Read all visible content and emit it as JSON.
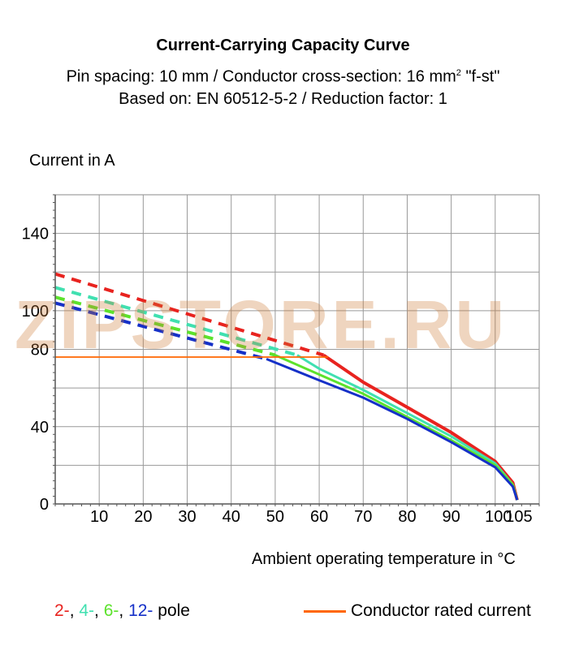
{
  "header": {
    "title": "Current-Carrying Capacity Curve",
    "subtitle_1_pre": "Pin spacing: 10 mm / Conductor cross-section: 16 mm",
    "subtitle_1_sup": "2",
    "subtitle_1_post": " \"f-st\"",
    "subtitle_2": "Based on: EN 60512-5-2 / Reduction factor: 1"
  },
  "watermark": "ZIPSTORE.RU",
  "legend": {
    "pole_items": [
      {
        "text": "2-",
        "color": "#e8231f"
      },
      {
        "text": ", ",
        "color": "#000000"
      },
      {
        "text": "4-",
        "color": "#40e0b0"
      },
      {
        "text": ", ",
        "color": "#000000"
      },
      {
        "text": "6-",
        "color": "#5ce22c"
      },
      {
        "text": ", ",
        "color": "#000000"
      },
      {
        "text": "12-",
        "color": "#1530c8"
      },
      {
        "text": " pole",
        "color": "#000000"
      }
    ],
    "rated_label": "Conductor rated current",
    "rated_color": "#ff6600"
  },
  "chart_data": {
    "type": "line",
    "title": "Current-Carrying Capacity Curve",
    "xlabel": "Ambient operating temperature in °C",
    "ylabel": "Current in A",
    "xlim": [
      0,
      110
    ],
    "ylim": [
      0,
      160
    ],
    "x_ticks": [
      10,
      20,
      30,
      40,
      50,
      60,
      70,
      80,
      90,
      100,
      105
    ],
    "x_tick_labels": [
      "10",
      "20",
      "30",
      "40",
      "50",
      "60",
      "70",
      "80",
      "90",
      "100",
      "105"
    ],
    "y_ticks": [
      0,
      40,
      80,
      100,
      140
    ],
    "y_tick_labels": [
      "0",
      "40",
      "80",
      "100",
      "140"
    ],
    "grid": true,
    "series": [
      {
        "name": "2-pole",
        "color": "#e8231f",
        "dashed": [
          [
            0,
            119
          ],
          [
            61,
            77
          ]
        ],
        "solid": [
          [
            61,
            77
          ],
          [
            70,
            63
          ],
          [
            80,
            50
          ],
          [
            90,
            37
          ],
          [
            100,
            22
          ],
          [
            104,
            11
          ],
          [
            105,
            2
          ]
        ]
      },
      {
        "name": "4-pole",
        "color": "#40e0b0",
        "dashed": [
          [
            0,
            112
          ],
          [
            55,
            77
          ]
        ],
        "solid": [
          [
            55,
            77
          ],
          [
            60,
            70
          ],
          [
            70,
            59
          ],
          [
            80,
            47
          ],
          [
            90,
            35
          ],
          [
            100,
            21
          ],
          [
            104,
            10
          ],
          [
            105,
            2
          ]
        ]
      },
      {
        "name": "6-pole",
        "color": "#5ce22c",
        "dashed": [
          [
            0,
            107
          ],
          [
            50,
            77
          ]
        ],
        "solid": [
          [
            50,
            77
          ],
          [
            60,
            67
          ],
          [
            70,
            57
          ],
          [
            80,
            45
          ],
          [
            90,
            33
          ],
          [
            100,
            20
          ],
          [
            104,
            10
          ],
          [
            105,
            2
          ]
        ]
      },
      {
        "name": "12-pole",
        "color": "#1530c8",
        "dashed": [
          [
            0,
            104
          ],
          [
            48,
            75
          ]
        ],
        "solid": [
          [
            48,
            75
          ],
          [
            60,
            64
          ],
          [
            70,
            55
          ],
          [
            80,
            44
          ],
          [
            90,
            32
          ],
          [
            100,
            19
          ],
          [
            104,
            9
          ],
          [
            105,
            2
          ]
        ]
      },
      {
        "name": "Conductor rated current",
        "color": "#ff6600",
        "solid": [
          [
            0,
            76
          ],
          [
            62,
            76
          ]
        ]
      }
    ]
  }
}
